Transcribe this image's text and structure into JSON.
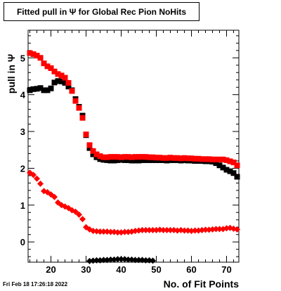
{
  "chart_data": {
    "type": "scatter",
    "title": "Fitted pull in  Ψ  for Global Rec Pion NoHits",
    "xlabel": "No. of Fit Points",
    "ylabel": "pull in  Ψ",
    "xlim": [
      13.5,
      73.5
    ],
    "ylim": [
      -0.55,
      5.75
    ],
    "x_ticks": [
      20,
      30,
      40,
      50,
      60,
      70
    ],
    "y_ticks": [
      0,
      1,
      2,
      3,
      4,
      5
    ],
    "grid": false,
    "series": [
      {
        "color": "#000000",
        "marker": "square",
        "x": [
          14,
          15,
          16,
          17,
          18,
          19,
          20,
          21,
          22,
          23,
          24,
          25,
          26,
          27,
          28,
          29,
          30,
          31,
          32,
          33,
          34,
          35,
          36,
          37,
          38,
          39,
          40,
          41,
          42,
          43,
          44,
          45,
          46,
          47,
          48,
          49,
          50,
          51,
          52,
          53,
          54,
          55,
          56,
          57,
          58,
          59,
          60,
          61,
          62,
          63,
          64,
          65,
          66,
          67,
          68,
          69,
          70,
          71,
          72,
          73
        ],
        "y": [
          4.12,
          4.15,
          4.16,
          4.18,
          4.12,
          4.12,
          4.17,
          4.33,
          4.37,
          4.36,
          4.32,
          4.22,
          4.12,
          3.88,
          3.67,
          3.43,
          2.9,
          2.55,
          2.38,
          2.3,
          2.25,
          2.23,
          2.22,
          2.21,
          2.21,
          2.22,
          2.23,
          2.22,
          2.22,
          2.21,
          2.21,
          2.21,
          2.22,
          2.22,
          2.22,
          2.22,
          2.22,
          2.22,
          2.22,
          2.21,
          2.22,
          2.22,
          2.22,
          2.21,
          2.22,
          2.21,
          2.21,
          2.2,
          2.2,
          2.2,
          2.19,
          2.19,
          2.18,
          2.14,
          2.08,
          2.02,
          1.96,
          1.92,
          1.87,
          1.77
        ]
      },
      {
        "color": "#ff0000",
        "marker": "square",
        "x": [
          14,
          15,
          16,
          17,
          18,
          19,
          20,
          21,
          22,
          23,
          24,
          25,
          26,
          27,
          28,
          29,
          30,
          31,
          32,
          33,
          34,
          35,
          36,
          37,
          38,
          39,
          40,
          41,
          42,
          43,
          44,
          45,
          46,
          47,
          48,
          49,
          50,
          51,
          52,
          53,
          54,
          55,
          56,
          57,
          58,
          59,
          60,
          61,
          62,
          63,
          64,
          65,
          66,
          67,
          68,
          69,
          70,
          71,
          72,
          73
        ],
        "y": [
          5.13,
          5.1,
          5.06,
          5.0,
          4.85,
          4.77,
          4.72,
          4.63,
          4.56,
          4.52,
          4.46,
          4.32,
          4.1,
          3.83,
          3.64,
          3.37,
          2.92,
          2.63,
          2.47,
          2.38,
          2.33,
          2.3,
          2.3,
          2.31,
          2.31,
          2.31,
          2.3,
          2.31,
          2.31,
          2.3,
          2.31,
          2.31,
          2.31,
          2.31,
          2.3,
          2.3,
          2.29,
          2.29,
          2.28,
          2.28,
          2.29,
          2.28,
          2.28,
          2.27,
          2.28,
          2.27,
          2.27,
          2.26,
          2.26,
          2.25,
          2.25,
          2.25,
          2.24,
          2.24,
          2.24,
          2.24,
          2.22,
          2.19,
          2.16,
          2.08
        ]
      },
      {
        "color": "#ff0000",
        "marker": "diamond",
        "x": [
          14,
          15,
          16,
          17,
          18,
          19,
          20,
          21,
          22,
          23,
          24,
          25,
          26,
          27,
          28,
          29,
          30,
          31,
          32,
          33,
          34,
          35,
          36,
          37,
          38,
          39,
          40,
          41,
          42,
          43,
          44,
          45,
          46,
          47,
          48,
          49,
          50,
          51,
          52,
          53,
          54,
          55,
          56,
          57,
          58,
          59,
          60,
          61,
          62,
          63,
          64,
          65,
          66,
          67,
          68,
          69,
          70,
          71,
          72,
          73
        ],
        "y": [
          1.88,
          1.82,
          1.72,
          1.58,
          1.38,
          1.35,
          1.29,
          1.22,
          1.07,
          1.0,
          0.96,
          0.92,
          0.86,
          0.82,
          0.74,
          0.62,
          0.4,
          0.34,
          0.3,
          0.29,
          0.28,
          0.28,
          0.28,
          0.27,
          0.27,
          0.26,
          0.26,
          0.27,
          0.27,
          0.28,
          0.3,
          0.31,
          0.32,
          0.32,
          0.32,
          0.32,
          0.32,
          0.33,
          0.32,
          0.32,
          0.32,
          0.32,
          0.31,
          0.32,
          0.31,
          0.31,
          0.3,
          0.31,
          0.31,
          0.32,
          0.33,
          0.33,
          0.34,
          0.35,
          0.35,
          0.35,
          0.37,
          0.38,
          0.36,
          0.34
        ]
      },
      {
        "color": "#000000",
        "marker": "diamond",
        "x": [
          31,
          32,
          33,
          34,
          35,
          36,
          37,
          38,
          39,
          40,
          41,
          42,
          43,
          44,
          45,
          46,
          47,
          48,
          49
        ],
        "y": [
          -0.52,
          -0.51,
          -0.5,
          -0.5,
          -0.49,
          -0.49,
          -0.48,
          -0.48,
          -0.47,
          -0.47,
          -0.47,
          -0.48,
          -0.48,
          -0.49,
          -0.49,
          -0.49,
          -0.5,
          -0.5,
          -0.51
        ]
      }
    ]
  },
  "footer": {
    "timestamp": "Fri Feb 18 17:26:18 2022"
  }
}
